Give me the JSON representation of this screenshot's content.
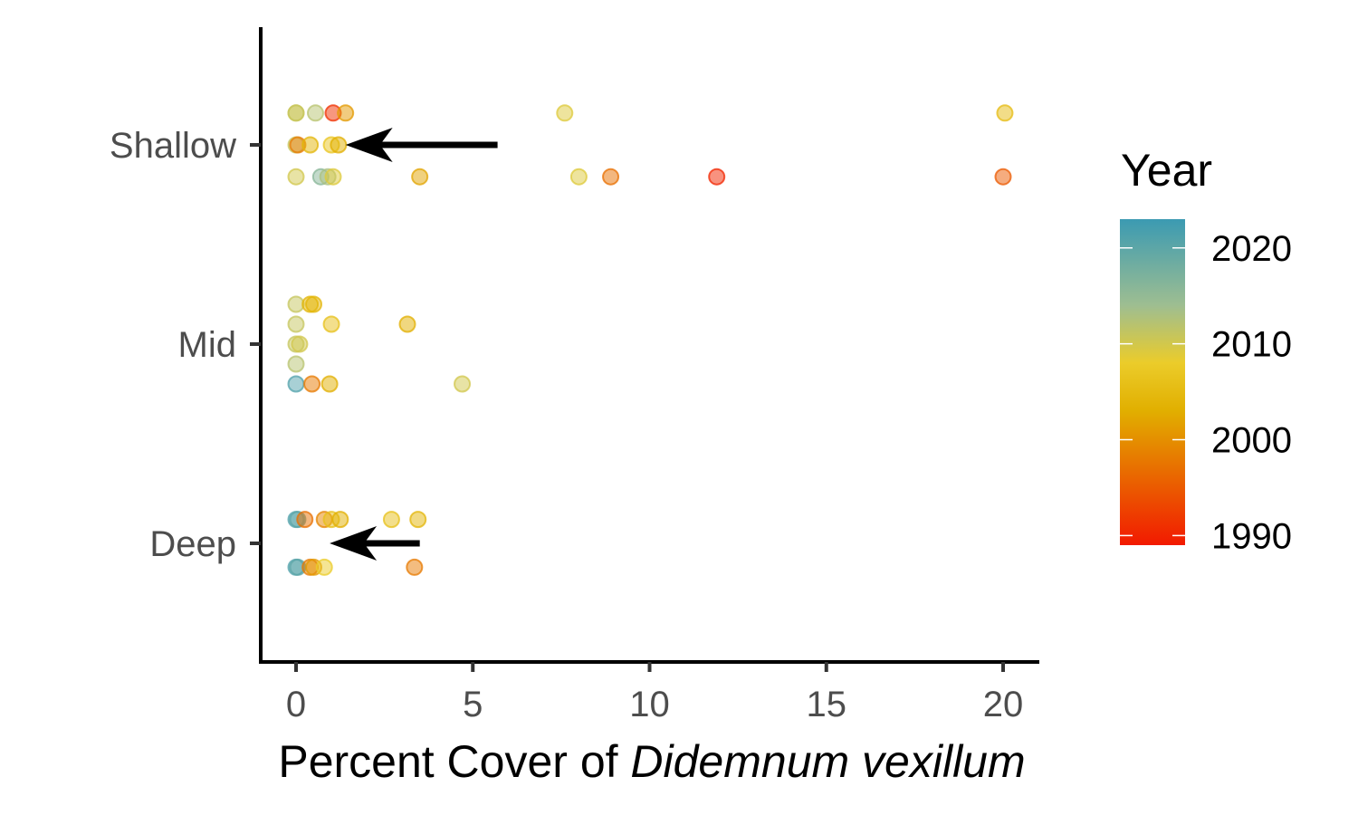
{
  "chart_data": {
    "type": "scatter",
    "xlabel": {
      "prefix": "Percent Cover of ",
      "italic": "Didemnum vexillum"
    },
    "ylabel": "",
    "xlim": [
      -1,
      21
    ],
    "x_ticks": [
      0,
      5,
      10,
      15,
      20
    ],
    "categories": [
      "Shallow",
      "Mid",
      "Deep"
    ],
    "color_scale": {
      "title": "Year",
      "min": 1989,
      "max": 2023,
      "ticks": [
        1990,
        2000,
        2010,
        2020
      ],
      "stops": [
        {
          "year": 1989,
          "color": "#F21A00"
        },
        {
          "year": 2003,
          "color": "#E1AF00"
        },
        {
          "year": 2008,
          "color": "#EBCC2A"
        },
        {
          "year": 2014,
          "color": "#9EBE91"
        },
        {
          "year": 2023,
          "color": "#3B9AB2"
        }
      ]
    },
    "points": [
      {
        "category": "Shallow",
        "jitter": 0.16,
        "x": 0.0,
        "year": 2010
      },
      {
        "category": "Shallow",
        "jitter": 0.16,
        "x": 0.0,
        "year": 2011
      },
      {
        "category": "Shallow",
        "jitter": 0.16,
        "x": 0.55,
        "year": 2012
      },
      {
        "category": "Shallow",
        "jitter": 0.16,
        "x": 1.05,
        "year": 1991
      },
      {
        "category": "Shallow",
        "jitter": 0.16,
        "x": 1.4,
        "year": 2001
      },
      {
        "category": "Shallow",
        "jitter": 0.16,
        "x": 7.6,
        "year": 2009
      },
      {
        "category": "Shallow",
        "jitter": 0.16,
        "x": 20.05,
        "year": 2005
      },
      {
        "category": "Shallow",
        "jitter": 0.0,
        "x": 0.0,
        "year": 2011
      },
      {
        "category": "Shallow",
        "jitter": 0.0,
        "x": 0.05,
        "year": 1998
      },
      {
        "category": "Shallow",
        "jitter": 0.0,
        "x": 0.4,
        "year": 2004
      },
      {
        "category": "Shallow",
        "jitter": 0.0,
        "x": 1.0,
        "year": 2007
      },
      {
        "category": "Shallow",
        "jitter": 0.0,
        "x": 1.2,
        "year": 2003
      },
      {
        "category": "Shallow",
        "jitter": -0.16,
        "x": 0.0,
        "year": 2010
      },
      {
        "category": "Shallow",
        "jitter": -0.16,
        "x": 0.7,
        "year": 2016
      },
      {
        "category": "Shallow",
        "jitter": -0.16,
        "x": 0.9,
        "year": 2013
      },
      {
        "category": "Shallow",
        "jitter": -0.16,
        "x": 1.05,
        "year": 2009
      },
      {
        "category": "Shallow",
        "jitter": -0.16,
        "x": 3.5,
        "year": 2002
      },
      {
        "category": "Shallow",
        "jitter": -0.16,
        "x": 8.0,
        "year": 2009
      },
      {
        "category": "Shallow",
        "jitter": -0.16,
        "x": 8.9,
        "year": 1997
      },
      {
        "category": "Shallow",
        "jitter": -0.16,
        "x": 11.9,
        "year": 1990
      },
      {
        "category": "Shallow",
        "jitter": -0.16,
        "x": 20.0,
        "year": 1995
      },
      {
        "category": "Mid",
        "jitter": 0.2,
        "x": 0.0,
        "year": 2011
      },
      {
        "category": "Mid",
        "jitter": 0.2,
        "x": 0.4,
        "year": 2004
      },
      {
        "category": "Mid",
        "jitter": 0.2,
        "x": 0.5,
        "year": 2004
      },
      {
        "category": "Mid",
        "jitter": 0.1,
        "x": 0.0,
        "year": 2011
      },
      {
        "category": "Mid",
        "jitter": 0.1,
        "x": 1.0,
        "year": 2006
      },
      {
        "category": "Mid",
        "jitter": 0.1,
        "x": 3.15,
        "year": 2003
      },
      {
        "category": "Mid",
        "jitter": 0.0,
        "x": 0.0,
        "year": 2011
      },
      {
        "category": "Mid",
        "jitter": 0.0,
        "x": 0.1,
        "year": 2010
      },
      {
        "category": "Mid",
        "jitter": -0.1,
        "x": 0.0,
        "year": 2012
      },
      {
        "category": "Mid",
        "jitter": -0.2,
        "x": 0.0,
        "year": 2021
      },
      {
        "category": "Mid",
        "jitter": -0.2,
        "x": 0.45,
        "year": 1998
      },
      {
        "category": "Mid",
        "jitter": -0.2,
        "x": 0.95,
        "year": 2003
      },
      {
        "category": "Mid",
        "jitter": -0.2,
        "x": 4.7,
        "year": 2010
      },
      {
        "category": "Deep",
        "jitter": 0.12,
        "x": 0.0,
        "year": 2021
      },
      {
        "category": "Deep",
        "jitter": 0.12,
        "x": 0.05,
        "year": 2020
      },
      {
        "category": "Deep",
        "jitter": 0.12,
        "x": 0.25,
        "year": 1997
      },
      {
        "category": "Deep",
        "jitter": 0.12,
        "x": 0.8,
        "year": 1999
      },
      {
        "category": "Deep",
        "jitter": 0.12,
        "x": 1.0,
        "year": 2006
      },
      {
        "category": "Deep",
        "jitter": 0.12,
        "x": 1.25,
        "year": 2003
      },
      {
        "category": "Deep",
        "jitter": 0.12,
        "x": 2.7,
        "year": 2006
      },
      {
        "category": "Deep",
        "jitter": 0.12,
        "x": 3.45,
        "year": 2004
      },
      {
        "category": "Deep",
        "jitter": -0.12,
        "x": 0.0,
        "year": 2021
      },
      {
        "category": "Deep",
        "jitter": -0.12,
        "x": 0.05,
        "year": 2020
      },
      {
        "category": "Deep",
        "jitter": -0.12,
        "x": 0.4,
        "year": 1998
      },
      {
        "category": "Deep",
        "jitter": -0.12,
        "x": 0.5,
        "year": 2001
      },
      {
        "category": "Deep",
        "jitter": -0.12,
        "x": 0.8,
        "year": 2008
      },
      {
        "category": "Deep",
        "jitter": -0.12,
        "x": 3.35,
        "year": 1998
      }
    ],
    "annotations": [
      {
        "type": "arrow",
        "category": "Shallow",
        "from_x": 5.7,
        "to_x": 1.4
      },
      {
        "type": "arrow",
        "category": "Deep",
        "from_x": 3.5,
        "to_x": 0.95
      }
    ],
    "grid": false,
    "legend_position": "right"
  }
}
